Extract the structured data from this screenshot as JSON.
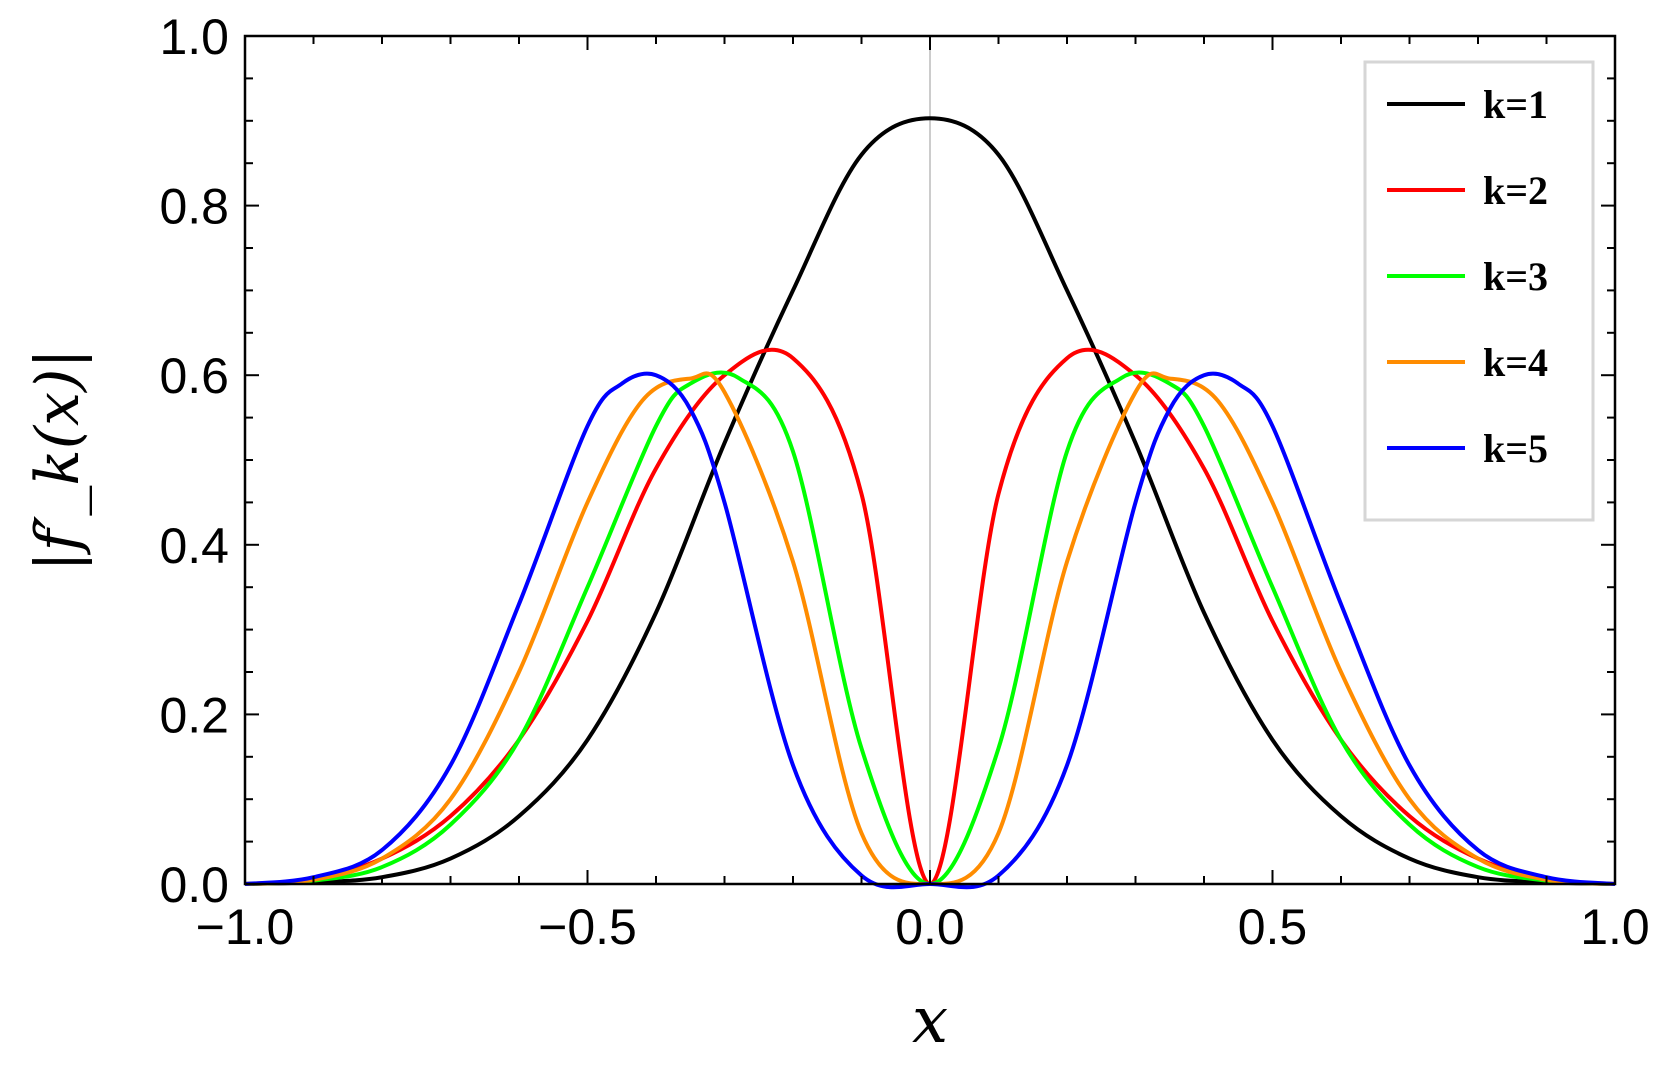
{
  "chart_data": {
    "type": "line",
    "xlabel": "x",
    "ylabel": "|f′_k(x)|",
    "xlim": [
      -1.0,
      1.0
    ],
    "ylim": [
      0.0,
      1.0
    ],
    "x_ticks": [
      -1.0,
      -0.5,
      0.0,
      0.5,
      1.0
    ],
    "x_tick_labels": [
      "−1.0",
      "−0.5",
      "0.0",
      "0.5",
      "1.0"
    ],
    "y_ticks": [
      0.0,
      0.2,
      0.4,
      0.6,
      0.8,
      1.0
    ],
    "y_tick_labels": [
      "0.0",
      "0.2",
      "0.4",
      "0.6",
      "0.8",
      "1.0"
    ],
    "grid": false,
    "legend_position": "top-right",
    "series": [
      {
        "name": "k=1",
        "color": "#000000",
        "x": [
          -1.0,
          -0.9,
          -0.8,
          -0.7,
          -0.6,
          -0.5,
          -0.4,
          -0.3,
          -0.2,
          -0.1,
          0.0,
          0.1,
          0.2,
          0.3,
          0.4,
          0.5,
          0.6,
          0.7,
          0.8,
          0.9,
          1.0
        ],
        "y": [
          0.0,
          0.002,
          0.008,
          0.03,
          0.08,
          0.17,
          0.32,
          0.52,
          0.7,
          0.86,
          0.903,
          0.86,
          0.7,
          0.52,
          0.32,
          0.17,
          0.08,
          0.03,
          0.008,
          0.002,
          0.0
        ]
      },
      {
        "name": "k=2",
        "color": "#ff0000",
        "x": [
          -1.0,
          -0.9,
          -0.8,
          -0.7,
          -0.6,
          -0.5,
          -0.4,
          -0.3,
          -0.2,
          -0.1,
          0.0,
          0.1,
          0.2,
          0.3,
          0.4,
          0.5,
          0.6,
          0.7,
          0.8,
          0.9,
          1.0
        ],
        "y": [
          0.0,
          0.006,
          0.03,
          0.08,
          0.17,
          0.31,
          0.49,
          0.6,
          0.62,
          0.46,
          0.0,
          0.46,
          0.62,
          0.6,
          0.49,
          0.31,
          0.17,
          0.08,
          0.03,
          0.006,
          0.0
        ]
      },
      {
        "name": "k=3",
        "color": "#00ff00",
        "x": [
          -1.0,
          -0.9,
          -0.8,
          -0.7,
          -0.6,
          -0.5,
          -0.4,
          -0.35,
          -0.28,
          -0.2,
          -0.1,
          0.0,
          0.1,
          0.2,
          0.28,
          0.35,
          0.4,
          0.5,
          0.6,
          0.7,
          0.8,
          0.9,
          1.0
        ],
        "y": [
          0.0,
          0.004,
          0.02,
          0.07,
          0.17,
          0.35,
          0.54,
          0.59,
          0.597,
          0.51,
          0.16,
          0.0,
          0.16,
          0.51,
          0.597,
          0.59,
          0.54,
          0.35,
          0.17,
          0.07,
          0.02,
          0.004,
          0.0
        ]
      },
      {
        "name": "k=4",
        "color": "#ff8c00",
        "x": [
          -1.0,
          -0.9,
          -0.8,
          -0.7,
          -0.6,
          -0.5,
          -0.42,
          -0.35,
          -0.3,
          -0.2,
          -0.1,
          0.0,
          0.1,
          0.2,
          0.3,
          0.35,
          0.42,
          0.5,
          0.6,
          0.7,
          0.8,
          0.9,
          1.0
        ],
        "y": [
          0.0,
          0.005,
          0.03,
          0.1,
          0.25,
          0.45,
          0.57,
          0.596,
          0.58,
          0.38,
          0.06,
          0.0,
          0.06,
          0.38,
          0.58,
          0.596,
          0.57,
          0.45,
          0.25,
          0.1,
          0.03,
          0.005,
          0.0
        ]
      },
      {
        "name": "k=5",
        "color": "#0000ff",
        "x": [
          -1.0,
          -0.9,
          -0.8,
          -0.7,
          -0.6,
          -0.5,
          -0.45,
          -0.4,
          -0.35,
          -0.3,
          -0.2,
          -0.1,
          0.0,
          0.1,
          0.2,
          0.3,
          0.35,
          0.4,
          0.45,
          0.5,
          0.6,
          0.7,
          0.8,
          0.9,
          1.0
        ],
        "y": [
          0.0,
          0.008,
          0.04,
          0.14,
          0.33,
          0.54,
          0.59,
          0.6,
          0.56,
          0.45,
          0.14,
          0.01,
          0.0,
          0.01,
          0.14,
          0.45,
          0.56,
          0.6,
          0.59,
          0.54,
          0.33,
          0.14,
          0.04,
          0.008,
          0.0
        ]
      }
    ]
  }
}
